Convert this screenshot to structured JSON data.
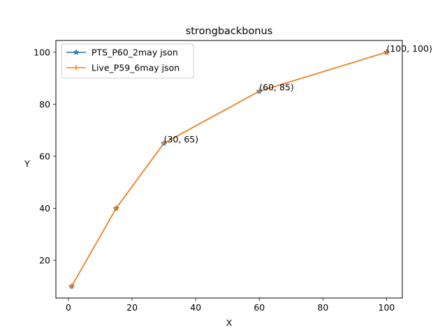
{
  "chart_data": {
    "type": "line",
    "title": "strongbackbonus",
    "xlabel": "X",
    "ylabel": "Y",
    "xlim": [
      -3.95,
      104.95
    ],
    "ylim": [
      5.5,
      104.5
    ],
    "xticks": [
      0,
      20,
      40,
      60,
      80,
      100
    ],
    "yticks": [
      20,
      40,
      60,
      80,
      100
    ],
    "grid": false,
    "legend_position": "upper-left",
    "series": [
      {
        "name": "PTS_P60_2may json",
        "color": "#1f77b4",
        "marker": "star",
        "x": [
          1,
          15,
          30,
          60,
          100
        ],
        "y": [
          10,
          40,
          65,
          85,
          100
        ]
      },
      {
        "name": "Live_P59_6may json",
        "color": "#ff7f0e",
        "marker": "plus",
        "x": [
          1,
          15,
          30,
          60,
          100
        ],
        "y": [
          10,
          40,
          65,
          85,
          100
        ]
      }
    ],
    "annotations": [
      {
        "text": "(30, 65)",
        "x": 30,
        "y": 65
      },
      {
        "text": "(60, 85)",
        "x": 60,
        "y": 85
      },
      {
        "text": "(100, 100)",
        "x": 100,
        "y": 100
      }
    ]
  }
}
